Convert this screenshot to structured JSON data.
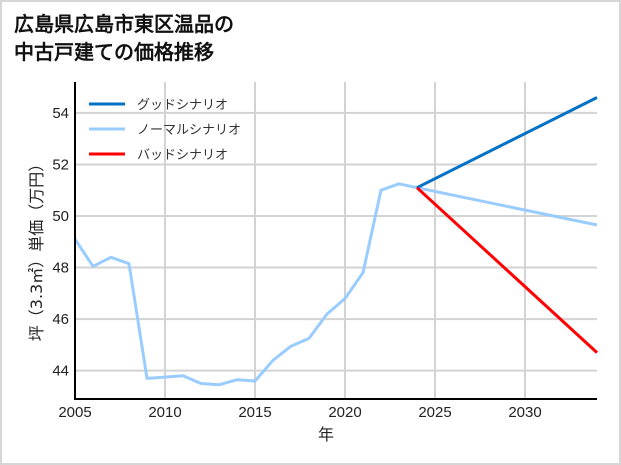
{
  "title_lines": [
    "広島県広島市東区温品の",
    "中古戸建ての価格推移"
  ],
  "chart_data": {
    "type": "line",
    "title": "広島県広島市東区温品の中古戸建ての価格推移",
    "xlabel": "年",
    "ylabel": "坪（3.3㎡）単価（万円）",
    "xlim": [
      2005,
      2034
    ],
    "ylim": [
      42.9,
      55.2
    ],
    "xticks": [
      2005,
      2010,
      2015,
      2020,
      2025,
      2030
    ],
    "yticks": [
      44,
      46,
      48,
      50,
      52,
      54
    ],
    "grid": true,
    "legend_position": "upper left",
    "series": [
      {
        "name": "グッドシナリオ",
        "color": "#0072c6",
        "x": [
          2024,
          2034
        ],
        "values": [
          51.1,
          54.6
        ]
      },
      {
        "name": "ノーマルシナリオ",
        "color": "#99ccff",
        "x": [
          2005,
          2006,
          2007,
          2008,
          2009,
          2010,
          2011,
          2012,
          2013,
          2014,
          2015,
          2016,
          2017,
          2018,
          2019,
          2020,
          2021,
          2022,
          2023,
          2024,
          2034
        ],
        "values": [
          49.1,
          48.05,
          48.4,
          48.15,
          43.7,
          43.75,
          43.8,
          43.5,
          43.45,
          43.65,
          43.6,
          44.4,
          44.95,
          45.25,
          46.2,
          46.8,
          47.8,
          51.0,
          51.25,
          51.1,
          49.65
        ]
      },
      {
        "name": "バッドシナリオ",
        "color": "#ff0000",
        "x": [
          2024,
          2034
        ],
        "values": [
          51.1,
          44.7
        ]
      }
    ]
  }
}
